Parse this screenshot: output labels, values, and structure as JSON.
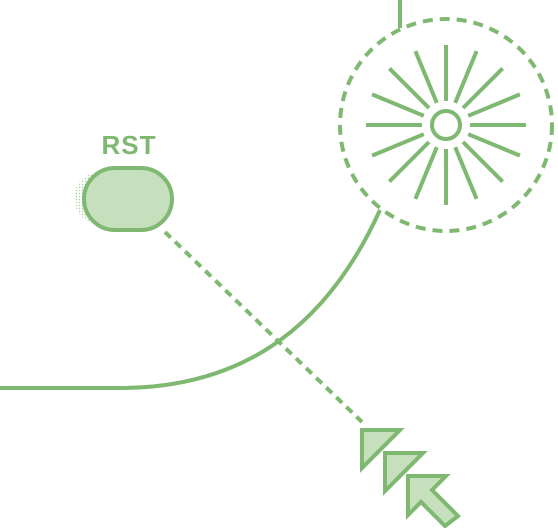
{
  "diagram": {
    "node_label": "RST",
    "colors": {
      "stroke": "#7fb870",
      "fill": "#c6dfbd",
      "label": "#7fb870",
      "background": "#ffffff"
    },
    "icons": [
      "sun-icon",
      "cursor-arrow-icon"
    ]
  }
}
